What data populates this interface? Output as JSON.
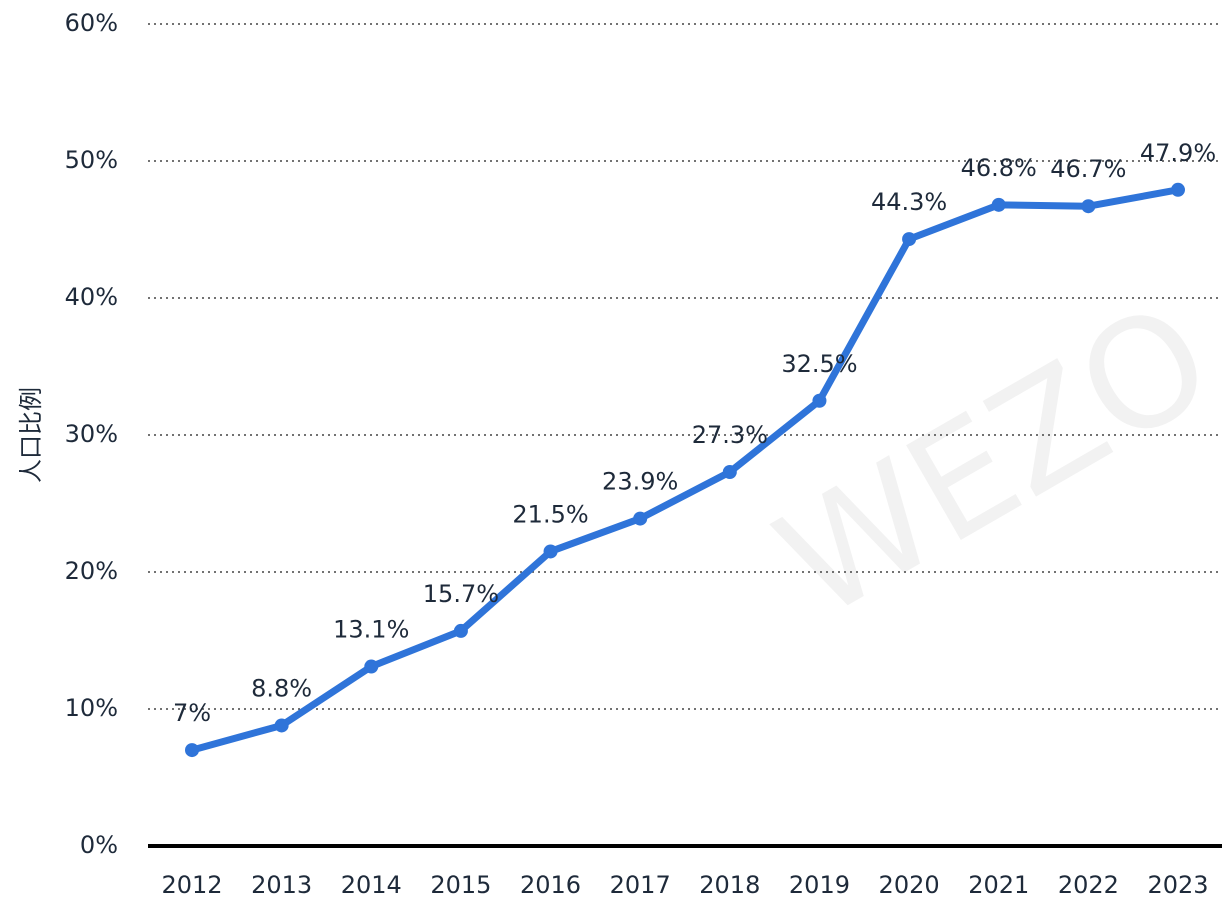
{
  "chart_data": {
    "type": "line",
    "y_axis_label": "人口比例",
    "watermark": "WEZO",
    "categories": [
      "2012",
      "2013",
      "2014",
      "2015",
      "2016",
      "2017",
      "2018",
      "2019",
      "2020",
      "2021",
      "2022",
      "2023"
    ],
    "series": [
      {
        "name": "人口比例",
        "color": "#2f74d9",
        "values": [
          7,
          8.8,
          13.1,
          15.7,
          21.5,
          23.9,
          27.3,
          32.5,
          44.3,
          46.8,
          46.7,
          47.9
        ],
        "value_labels": [
          "7%",
          "8.8%",
          "13.1%",
          "15.7%",
          "21.5%",
          "23.9%",
          "27.3%",
          "32.5%",
          "44.3%",
          "46.8%",
          "46.7%",
          "47.9%"
        ]
      }
    ],
    "ylim": [
      0,
      60
    ],
    "yticks": [
      {
        "value": 0,
        "label": "0%"
      },
      {
        "value": 10,
        "label": "10%"
      },
      {
        "value": 20,
        "label": "20%"
      },
      {
        "value": 30,
        "label": "30%"
      },
      {
        "value": 40,
        "label": "40%"
      },
      {
        "value": 50,
        "label": "50%"
      },
      {
        "value": 60,
        "label": "60%"
      }
    ],
    "grid": true
  }
}
